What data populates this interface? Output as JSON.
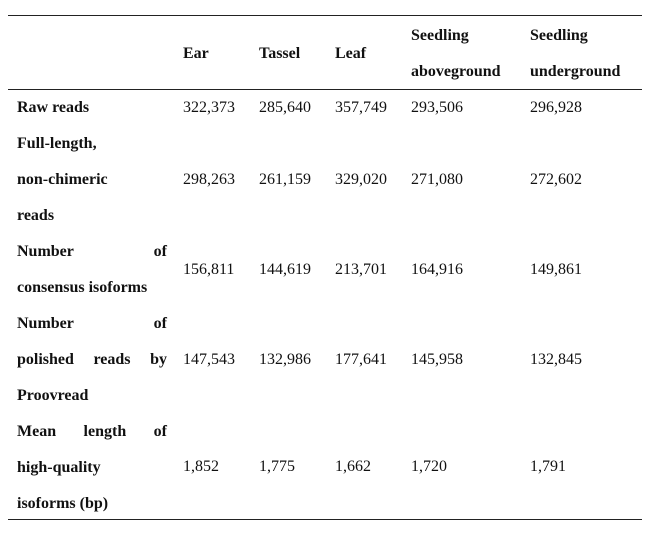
{
  "table": {
    "headers": {
      "ear": "Ear",
      "tassel": "Tassel",
      "leaf": "Leaf",
      "seedling_above_1": "Seedling",
      "seedling_above_2": "aboveground",
      "seedling_under_1": "Seedling",
      "seedling_under_2": "underground"
    },
    "rows": [
      {
        "label_lines": [
          "Raw reads"
        ],
        "values": [
          "322,373",
          "285,640",
          "357,749",
          "293,506",
          "296,928"
        ]
      },
      {
        "label_lines": [
          "Full-length,",
          "non-chimeric",
          "reads"
        ],
        "values": [
          "298,263",
          "261,159",
          "329,020",
          "271,080",
          "272,602"
        ]
      },
      {
        "label_lines": [
          "Number of",
          "consensus isoforms"
        ],
        "label_words_line1": [
          "Number",
          "of"
        ],
        "values": [
          "156,811",
          "144,619",
          "213,701",
          "164,916",
          "149,861"
        ]
      },
      {
        "label_lines": [
          "Number of",
          "polished reads by",
          "Proovread"
        ],
        "label_words_line1": [
          "Number",
          "of"
        ],
        "label_words_line2": [
          "polished",
          "reads",
          "by"
        ],
        "values": [
          "147,543",
          "132,986",
          "177,641",
          "145,958",
          "132,845"
        ]
      },
      {
        "label_lines": [
          "Mean length of",
          "high-quality",
          "isoforms (bp)"
        ],
        "label_words_line1": [
          "Mean",
          "length",
          "of"
        ],
        "values": [
          "1,852",
          "1,775",
          "1,662",
          "1,720",
          "1,791"
        ]
      }
    ]
  }
}
